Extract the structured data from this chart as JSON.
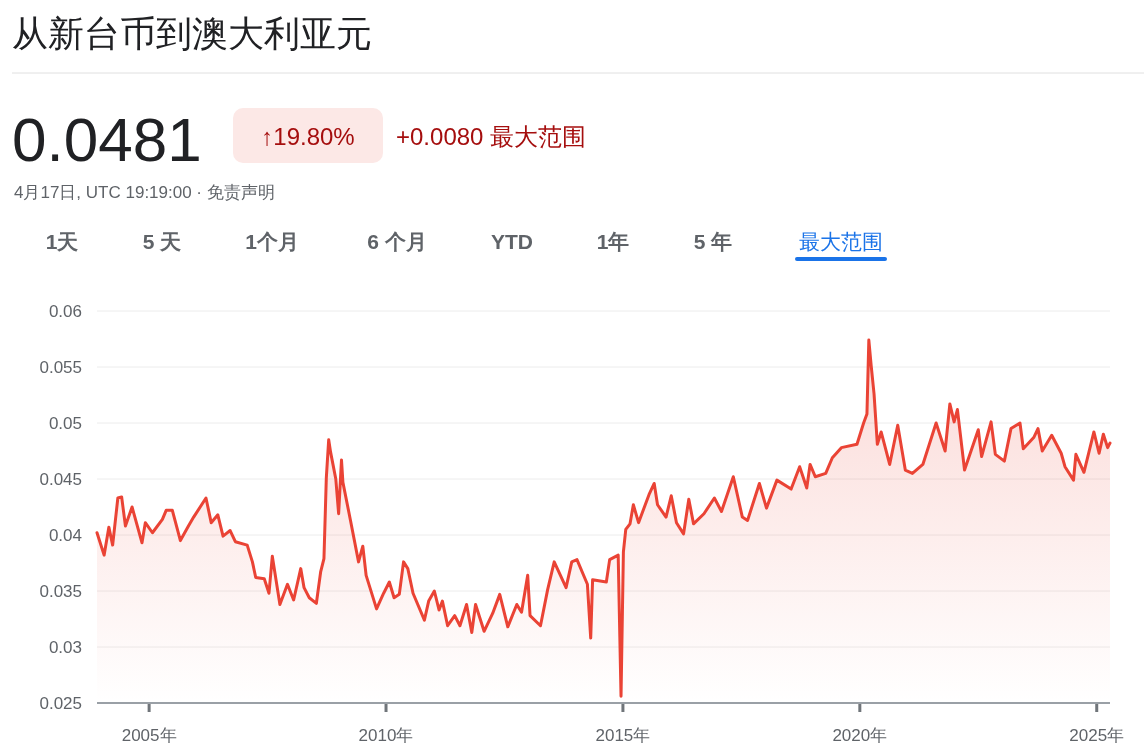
{
  "chart_data": {
    "type": "area",
    "title": "从新台币到澳大利亚元",
    "annotations": [
      "0.0481",
      "↑19.80%",
      "+0.0080 最大范围",
      "4月17日, UTC 19:19:00 · 免责声明",
      "1天",
      "5 天",
      "1个月",
      "6 个月",
      "YTD",
      "1年",
      "5 年",
      "最大范围"
    ],
    "series": [
      {
        "color": "#ea4335",
        "x": [
          2003.9,
          2004.05,
          2004.15,
          2004.23,
          2004.34,
          2004.42,
          2004.5,
          2004.64,
          2004.85,
          2004.92,
          2005.07,
          2005.28,
          2005.36,
          2005.49,
          2005.66,
          2005.83,
          2005.94,
          2006.2,
          2006.31,
          2006.45,
          2006.56,
          2006.71,
          2006.82,
          2007.07,
          2007.18,
          2007.25,
          2007.43,
          2007.53,
          2007.6,
          2007.76,
          2007.92,
          2008.05,
          2008.2,
          2008.27,
          2008.38,
          2008.53,
          2008.62,
          2008.69,
          2008.74,
          2008.79,
          2008.83,
          2008.94,
          2009.0,
          2009.06,
          2009.09,
          2009.25,
          2009.42,
          2009.51,
          2009.58,
          2009.8,
          2009.95,
          2010.07,
          2010.17,
          2010.28,
          2010.37,
          2010.46,
          2010.57,
          2010.81,
          2010.9,
          2011.02,
          2011.12,
          2011.19,
          2011.3,
          2011.45,
          2011.56,
          2011.7,
          2011.81,
          2011.89,
          2012.07,
          2012.25,
          2012.4,
          2012.57,
          2012.76,
          2012.86,
          2012.99,
          2013.04,
          2013.26,
          2013.41,
          2013.55,
          2013.8,
          2013.92,
          2014.03,
          2014.25,
          2014.32,
          2014.36,
          2014.65,
          2014.72,
          2014.9,
          2014.96,
          2015.01,
          2015.06,
          2015.15,
          2015.22,
          2015.33,
          2015.55,
          2015.66,
          2015.73,
          2015.91,
          2016.02,
          2016.13,
          2016.28,
          2016.39,
          2016.49,
          2016.71,
          2016.93,
          2017.08,
          2017.33,
          2017.52,
          2017.63,
          2017.88,
          2018.03,
          2018.25,
          2018.55,
          2018.73,
          2018.88,
          2018.95,
          2019.06,
          2019.28,
          2019.42,
          2019.61,
          2019.94,
          2020.08,
          2020.15,
          2020.19,
          2020.24,
          2020.3,
          2020.37,
          2020.45,
          2020.63,
          2020.8,
          2020.96,
          2021.11,
          2021.33,
          2021.61,
          2021.8,
          2021.9,
          2021.99,
          2022.06,
          2022.21,
          2022.5,
          2022.57,
          2022.77,
          2022.86,
          2023.05,
          2023.19,
          2023.38,
          2023.45,
          2023.67,
          2023.76,
          2023.85,
          2024.05,
          2024.25,
          2024.33,
          2024.51,
          2024.56,
          2024.73,
          2024.94,
          2025.05,
          2025.14,
          2025.23,
          2025.28
        ],
        "values": [
          0.0402,
          0.0382,
          0.0407,
          0.0391,
          0.0433,
          0.0434,
          0.0408,
          0.0425,
          0.0393,
          0.0411,
          0.0402,
          0.0414,
          0.0422,
          0.0422,
          0.0395,
          0.0408,
          0.0416,
          0.0433,
          0.0411,
          0.0418,
          0.0399,
          0.0404,
          0.0394,
          0.0391,
          0.0376,
          0.0362,
          0.0361,
          0.0348,
          0.0381,
          0.0338,
          0.0356,
          0.0342,
          0.037,
          0.0353,
          0.0344,
          0.0339,
          0.0367,
          0.0379,
          0.0451,
          0.0485,
          0.0474,
          0.045,
          0.0419,
          0.0467,
          0.0447,
          0.0413,
          0.0376,
          0.039,
          0.0364,
          0.0334,
          0.0348,
          0.0358,
          0.0344,
          0.0347,
          0.0376,
          0.037,
          0.0348,
          0.0324,
          0.0341,
          0.035,
          0.0333,
          0.0341,
          0.0319,
          0.0328,
          0.0319,
          0.0338,
          0.0313,
          0.0338,
          0.0314,
          0.033,
          0.0347,
          0.0318,
          0.0338,
          0.0331,
          0.0364,
          0.0328,
          0.0319,
          0.0351,
          0.0376,
          0.0353,
          0.0376,
          0.0378,
          0.0356,
          0.0308,
          0.036,
          0.0358,
          0.0378,
          0.0382,
          0.0256,
          0.0385,
          0.0405,
          0.041,
          0.0427,
          0.0411,
          0.0436,
          0.0446,
          0.0427,
          0.0416,
          0.0435,
          0.0411,
          0.0401,
          0.0432,
          0.041,
          0.0419,
          0.0433,
          0.0421,
          0.0452,
          0.0416,
          0.0413,
          0.0446,
          0.0424,
          0.0449,
          0.0441,
          0.0461,
          0.0442,
          0.0463,
          0.0452,
          0.0455,
          0.0469,
          0.0478,
          0.0481,
          0.05,
          0.0508,
          0.0574,
          0.0551,
          0.0526,
          0.0481,
          0.0492,
          0.0463,
          0.0498,
          0.0458,
          0.0455,
          0.0463,
          0.05,
          0.0475,
          0.0517,
          0.0501,
          0.0512,
          0.0458,
          0.0494,
          0.047,
          0.0501,
          0.0472,
          0.0466,
          0.0495,
          0.05,
          0.0477,
          0.0487,
          0.0495,
          0.0475,
          0.0489,
          0.0473,
          0.0461,
          0.0449,
          0.0472,
          0.0456,
          0.0492,
          0.0473,
          0.049,
          0.0478,
          0.0482
        ]
      }
    ],
    "xlim": [
      2003.9,
      2025.28
    ],
    "xticks": [
      {
        "value": 2005,
        "label": "2005年"
      },
      {
        "value": 2010,
        "label": "2010年"
      },
      {
        "value": 2015,
        "label": "2015年"
      },
      {
        "value": 2020,
        "label": "2020年"
      },
      {
        "value": 2025,
        "label": "2025年"
      }
    ],
    "ylim": [
      0.025,
      0.06
    ],
    "yticks": [
      0.025,
      0.03,
      0.035,
      0.04,
      0.045,
      0.05,
      0.055,
      0.06
    ],
    "grid": "y"
  }
}
